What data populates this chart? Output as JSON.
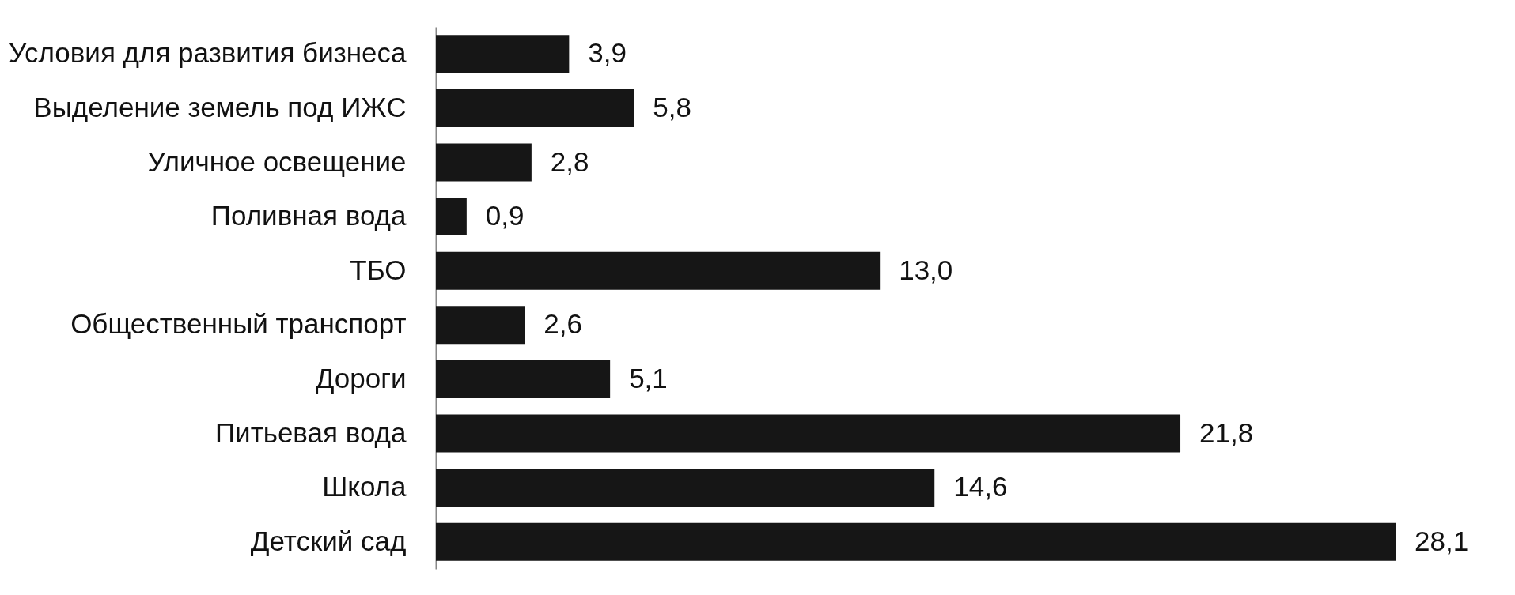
{
  "chart_data": {
    "type": "bar",
    "orientation": "horizontal",
    "categories": [
      "Условия для развития бизнеса",
      "Выделение земель под ИЖС",
      "Уличное освещение",
      "Поливная вода",
      "ТБО",
      "Общественный транспорт",
      "Дороги",
      "Питьевая вода",
      "Школа",
      "Детский сад"
    ],
    "values": [
      3.9,
      5.8,
      2.8,
      0.9,
      13.0,
      2.6,
      5.1,
      21.8,
      14.6,
      28.1
    ],
    "value_labels": [
      "3,9",
      "5,8",
      "2,8",
      "0,9",
      "13,0",
      "2,6",
      "5,1",
      "21,8",
      "14,6",
      "28,1"
    ],
    "color": "#161616"
  }
}
